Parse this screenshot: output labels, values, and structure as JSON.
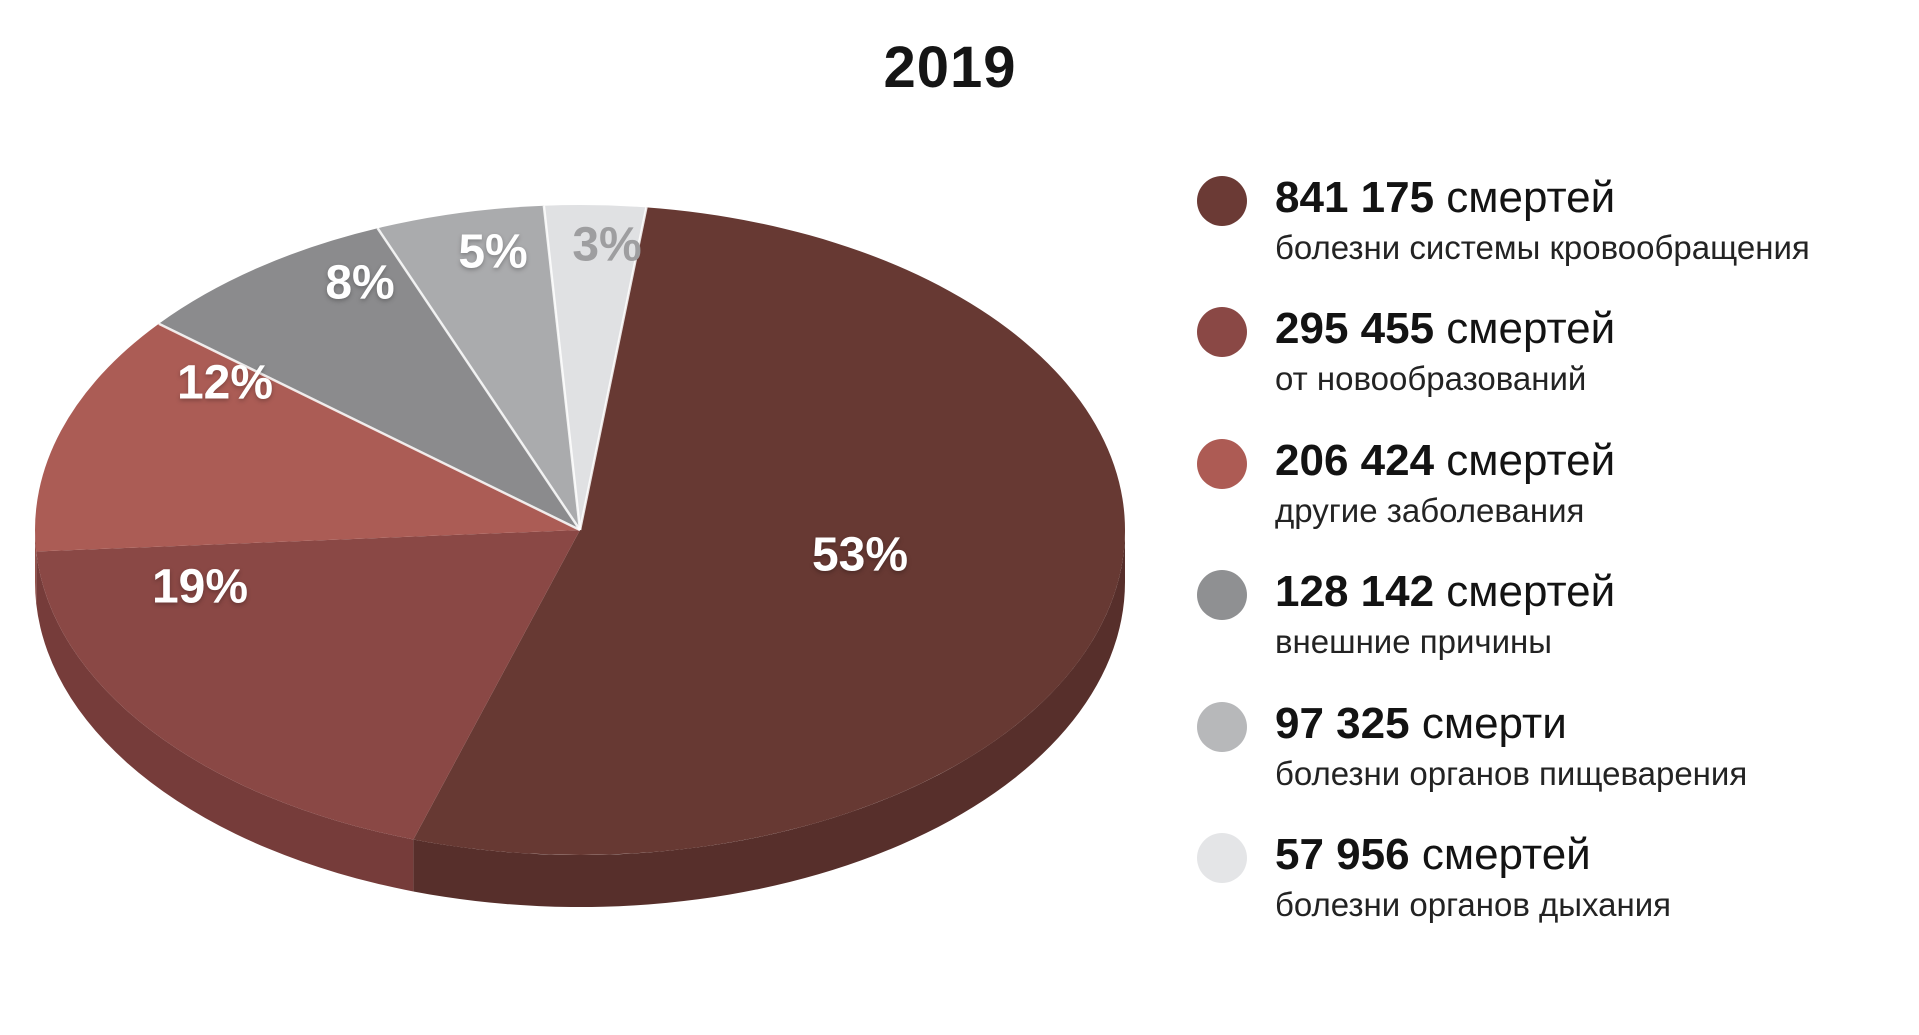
{
  "title": "2019",
  "chart_data": {
    "type": "pie",
    "style": "3d",
    "title": "2019",
    "start_angle_deg": 7,
    "direction": "clockwise",
    "legend_position": "right",
    "slices": [
      {
        "percent": 53,
        "percent_label": "53%",
        "value": "841 175",
        "unit": "смертей",
        "description": "болезни системы кровообращения",
        "color": "#673933",
        "side_color": "#572f2b",
        "dot_color": "#6b3a35",
        "pct_color": "#ffffff"
      },
      {
        "percent": 19,
        "percent_label": "19%",
        "value": "295 455",
        "unit": "смертей",
        "description": "от новообразований",
        "color": "#8a4845",
        "side_color": "#763c3a",
        "dot_color": "#8a4845",
        "pct_color": "#ffffff"
      },
      {
        "percent": 12,
        "percent_label": "12%",
        "value": "206 424",
        "unit": "смертей",
        "description": "другие заболевания",
        "color": "#ab5c55",
        "side_color": "#95504a",
        "dot_color": "#ad5b54",
        "pct_color": "#ffffff"
      },
      {
        "percent": 8,
        "percent_label": "8%",
        "value": "128 142",
        "unit": "смертей",
        "description": "внешние причины",
        "color": "#8b8b8d",
        "side_color": "#7a7a7c",
        "dot_color": "#8f9092",
        "pct_color": "#ffffff"
      },
      {
        "percent": 5,
        "percent_label": "5%",
        "value": "97 325",
        "unit": "смерти",
        "description": "болезни органов пищеварения",
        "color": "#aaabad",
        "side_color": "#97989a",
        "dot_color": "#b7b8ba",
        "pct_color": "#ffffff"
      },
      {
        "percent": 3,
        "percent_label": "3%",
        "value": "57 956",
        "unit": "смертей",
        "description": "болезни органов дыхания",
        "color": "#e0e1e3",
        "side_color": "#c9cacc",
        "dot_color": "#e4e5e7",
        "pct_color": "#9e9ea0"
      }
    ]
  }
}
